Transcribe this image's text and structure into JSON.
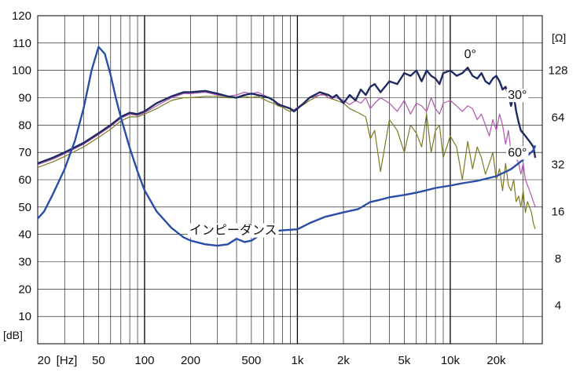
{
  "chart_data": {
    "type": "line",
    "x_scale": "log",
    "xlim": [
      20,
      40000
    ],
    "ylim_db": [
      0,
      120
    ],
    "ylim_ohm_log2": [
      2,
      8
    ],
    "grid": true,
    "y_left_ticks": [
      "120",
      "110",
      "100",
      "90",
      "80",
      "70",
      "60",
      "50",
      "40",
      "30",
      "20",
      "10"
    ],
    "y_left_unit": "[dB]",
    "y_right_ticks": [
      "128",
      "64",
      "32",
      "16",
      "8",
      "4"
    ],
    "y_right_unit": "[Ω]",
    "x_ticks": [
      "20",
      "[Hz]",
      "50",
      "100",
      "200",
      "500",
      "1k",
      "2k",
      "5k",
      "10k",
      "20k"
    ],
    "colors": {
      "spl_0": "#1f2a63",
      "spl_30": "#b055b0",
      "spl_60": "#7d7a22",
      "impedance": "#2a4da8",
      "grid": "#000000"
    },
    "series": [
      {
        "name": "0°",
        "axis": "dB",
        "x": [
          20,
          25,
          30,
          40,
          50,
          60,
          70,
          80,
          90,
          100,
          120,
          150,
          180,
          200,
          250,
          300,
          350,
          400,
          450,
          500,
          550,
          600,
          650,
          700,
          750,
          800,
          850,
          900,
          950,
          1000,
          1100,
          1200,
          1300,
          1400,
          1500,
          1600,
          1700,
          1800,
          1900,
          2000,
          2200,
          2400,
          2600,
          2800,
          3000,
          3200,
          3500,
          4000,
          4500,
          5000,
          5500,
          6000,
          6500,
          7000,
          7500,
          8000,
          8500,
          9000,
          10000,
          11000,
          12000,
          13000,
          14000,
          15000,
          16000,
          17000,
          18000,
          19000,
          20000,
          21000,
          22000,
          23000,
          24000,
          25000,
          26000,
          27000,
          28000,
          29000,
          30000,
          31000,
          32000,
          33000,
          34000,
          35000,
          36000
        ],
        "values": [
          66,
          68,
          70,
          73.5,
          77,
          80,
          83,
          84.5,
          84,
          85,
          88,
          90.5,
          92,
          92,
          92.5,
          91.5,
          90.5,
          90,
          91,
          91.5,
          91,
          90.5,
          90,
          89,
          87.5,
          87,
          86.5,
          86,
          85,
          86,
          88,
          90,
          91,
          92,
          91.5,
          91,
          90,
          91,
          89.5,
          88,
          91,
          89,
          93,
          91,
          94,
          95,
          92,
          96,
          95,
          99,
          98,
          100,
          96,
          100,
          98,
          97,
          95,
          99,
          100,
          98,
          99,
          101,
          98,
          97,
          99,
          96,
          95,
          97,
          98,
          96,
          93,
          94,
          91,
          87,
          91,
          85,
          81,
          78,
          77,
          76,
          75,
          74,
          73,
          72,
          68
        ]
      },
      {
        "name": "30°",
        "axis": "dB",
        "x": [
          20,
          25,
          30,
          40,
          50,
          60,
          70,
          80,
          90,
          100,
          120,
          150,
          180,
          200,
          250,
          300,
          350,
          400,
          450,
          500,
          550,
          600,
          650,
          700,
          750,
          800,
          850,
          900,
          950,
          1000,
          1100,
          1200,
          1300,
          1400,
          1500,
          1600,
          1800,
          2000,
          2200,
          2400,
          2600,
          2800,
          3000,
          3200,
          3500,
          4000,
          4500,
          5000,
          5500,
          6000,
          6500,
          7000,
          7500,
          8000,
          8500,
          9000,
          10000,
          11000,
          12000,
          13000,
          14000,
          15000,
          16000,
          17000,
          18000,
          19000,
          20000,
          21000,
          22000,
          23000,
          24000,
          25000,
          26000,
          27000,
          28000,
          29000,
          30000,
          31000,
          32000,
          33000,
          34000,
          35000,
          36000
        ],
        "values": [
          65.5,
          67.5,
          69.5,
          73,
          76.5,
          79.5,
          82.5,
          84,
          83.5,
          84.5,
          87,
          90,
          91.5,
          91.5,
          92,
          91,
          90.5,
          91,
          92,
          91.5,
          92,
          91,
          90,
          89,
          88,
          87,
          86.5,
          86,
          85.5,
          86.5,
          88,
          90,
          90.5,
          91,
          91,
          90,
          90,
          89,
          87.5,
          89,
          88,
          90,
          86,
          88,
          90,
          88,
          85,
          89,
          84,
          88,
          87,
          85,
          90,
          86,
          84,
          88,
          89,
          87,
          85,
          87,
          86,
          82,
          84,
          80,
          76,
          82,
          78,
          84,
          80,
          73,
          78,
          70,
          72,
          68,
          66,
          62,
          66,
          60,
          58,
          56,
          54,
          52,
          50
        ]
      },
      {
        "name": "60°",
        "axis": "dB",
        "x": [
          20,
          25,
          30,
          40,
          50,
          60,
          70,
          80,
          90,
          100,
          120,
          150,
          180,
          200,
          250,
          300,
          350,
          400,
          450,
          500,
          550,
          600,
          650,
          700,
          750,
          800,
          850,
          900,
          950,
          1000,
          1100,
          1200,
          1300,
          1400,
          1500,
          1600,
          1800,
          2000,
          2200,
          2400,
          2600,
          2800,
          3000,
          3200,
          3500,
          4000,
          4500,
          5000,
          5500,
          6000,
          6500,
          7000,
          7500,
          8000,
          8500,
          9000,
          10000,
          11000,
          12000,
          13000,
          14000,
          15000,
          16000,
          17000,
          18000,
          19000,
          20000,
          21000,
          22000,
          23000,
          24000,
          25000,
          26000,
          27000,
          28000,
          29000,
          30000,
          31000,
          32000,
          33000,
          34000,
          35000,
          36000
        ],
        "values": [
          64.5,
          66.5,
          68.5,
          72,
          75.5,
          78.5,
          81.5,
          83,
          83,
          84,
          86,
          89,
          90,
          90,
          90.5,
          90.5,
          90,
          90,
          90.5,
          90,
          90.5,
          89.5,
          88.5,
          88,
          87,
          86.5,
          85.5,
          85,
          85.5,
          86,
          87.5,
          89,
          90,
          91,
          91.5,
          90,
          89,
          88,
          86,
          85,
          84,
          83,
          75,
          78,
          63,
          82,
          78,
          70,
          80,
          77,
          72,
          84,
          70,
          78,
          80,
          68,
          76,
          72,
          60,
          74,
          64,
          72,
          68,
          62,
          66,
          70,
          60,
          64,
          56,
          66,
          58,
          56,
          60,
          52,
          54,
          50,
          56,
          48,
          52,
          50,
          48,
          44,
          42
        ]
      },
      {
        "name": "インピーダンス",
        "axis": "ohm_log2",
        "x": [
          20,
          22,
          25,
          30,
          35,
          40,
          45,
          50,
          55,
          60,
          65,
          70,
          80,
          90,
          100,
          120,
          150,
          180,
          200,
          250,
          300,
          350,
          400,
          450,
          500,
          600,
          700,
          800,
          1000,
          1200,
          1500,
          2000,
          2500,
          3000,
          3500,
          4000,
          5000,
          6000,
          7000,
          8000,
          10000,
          12000,
          15000,
          20000,
          25000,
          30000,
          35000,
          36000
        ],
        "values": [
          3.85,
          4.0,
          4.35,
          4.9,
          5.5,
          6.2,
          7.0,
          7.5,
          7.35,
          6.9,
          6.4,
          6.0,
          5.35,
          4.85,
          4.45,
          4.0,
          3.65,
          3.45,
          3.38,
          3.3,
          3.27,
          3.3,
          3.42,
          3.35,
          3.38,
          3.55,
          3.58,
          3.6,
          3.62,
          3.75,
          3.88,
          3.98,
          4.05,
          4.2,
          4.25,
          4.3,
          4.35,
          4.4,
          4.45,
          4.5,
          4.55,
          4.6,
          4.65,
          4.75,
          4.9,
          5.1,
          5.3,
          5.4
        ]
      }
    ],
    "annotations": [
      {
        "text": "0°",
        "near_series": "0°"
      },
      {
        "text": "30°",
        "near_series": "30°"
      },
      {
        "text": "60°",
        "near_series": "60°"
      },
      {
        "text": "インピーダンス",
        "near_series": "インピーダンス"
      }
    ]
  }
}
